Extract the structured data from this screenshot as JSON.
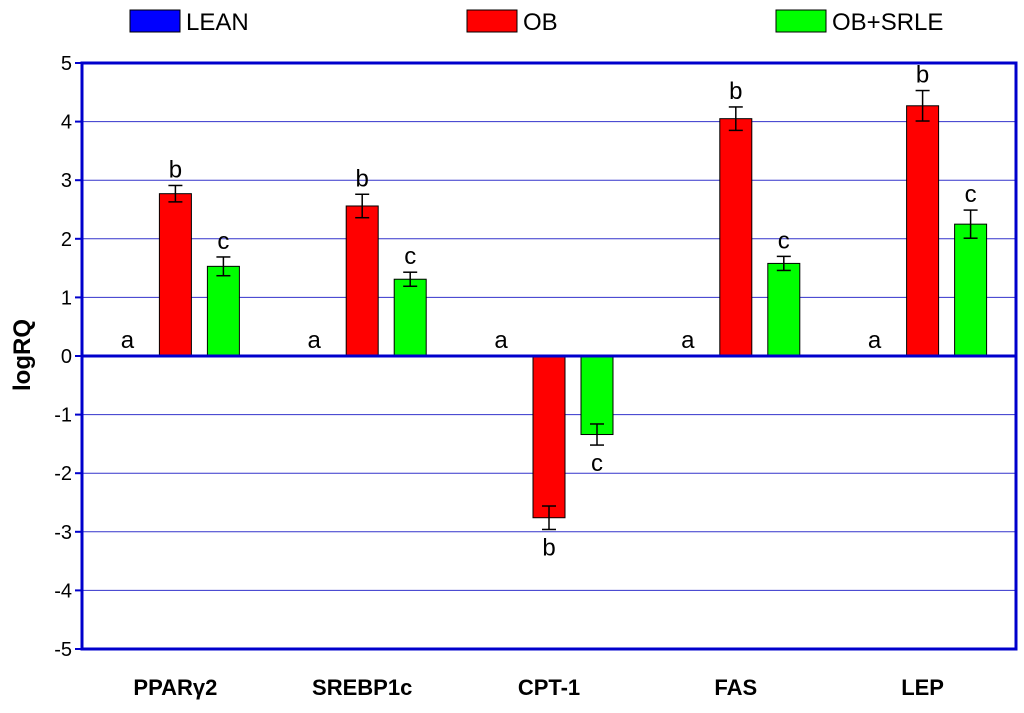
{
  "chart_data": {
    "type": "bar",
    "ylabel": "logRQ",
    "ylim": [
      -5,
      5
    ],
    "yticks": [
      5,
      4,
      3,
      2,
      1,
      0,
      -1,
      -2,
      -3,
      -4,
      -5
    ],
    "grid": true,
    "legend_position": "top",
    "categories": [
      "PPARγ2",
      "SREBP1c",
      "CPT-1",
      "FAS",
      "LEP"
    ],
    "series": [
      {
        "name": "LEAN",
        "color": "#0000ff",
        "values": [
          0,
          0,
          0,
          0,
          0
        ],
        "errors": [
          0,
          0,
          0,
          0,
          0
        ],
        "labels": [
          "a",
          "a",
          "a",
          "a",
          "a"
        ]
      },
      {
        "name": "OB",
        "color": "#ff0000",
        "values": [
          2.77,
          2.56,
          -2.76,
          4.05,
          4.27
        ],
        "errors": [
          0.14,
          0.2,
          0.2,
          0.2,
          0.26
        ],
        "labels": [
          "b",
          "b",
          "b",
          "b",
          "b"
        ]
      },
      {
        "name": "OB+SRLE",
        "color": "#00ff00",
        "values": [
          1.53,
          1.31,
          -1.34,
          1.58,
          2.25
        ],
        "errors": [
          0.16,
          0.12,
          0.18,
          0.12,
          0.24
        ],
        "labels": [
          "c",
          "c",
          "c",
          "c",
          "c"
        ]
      }
    ]
  }
}
